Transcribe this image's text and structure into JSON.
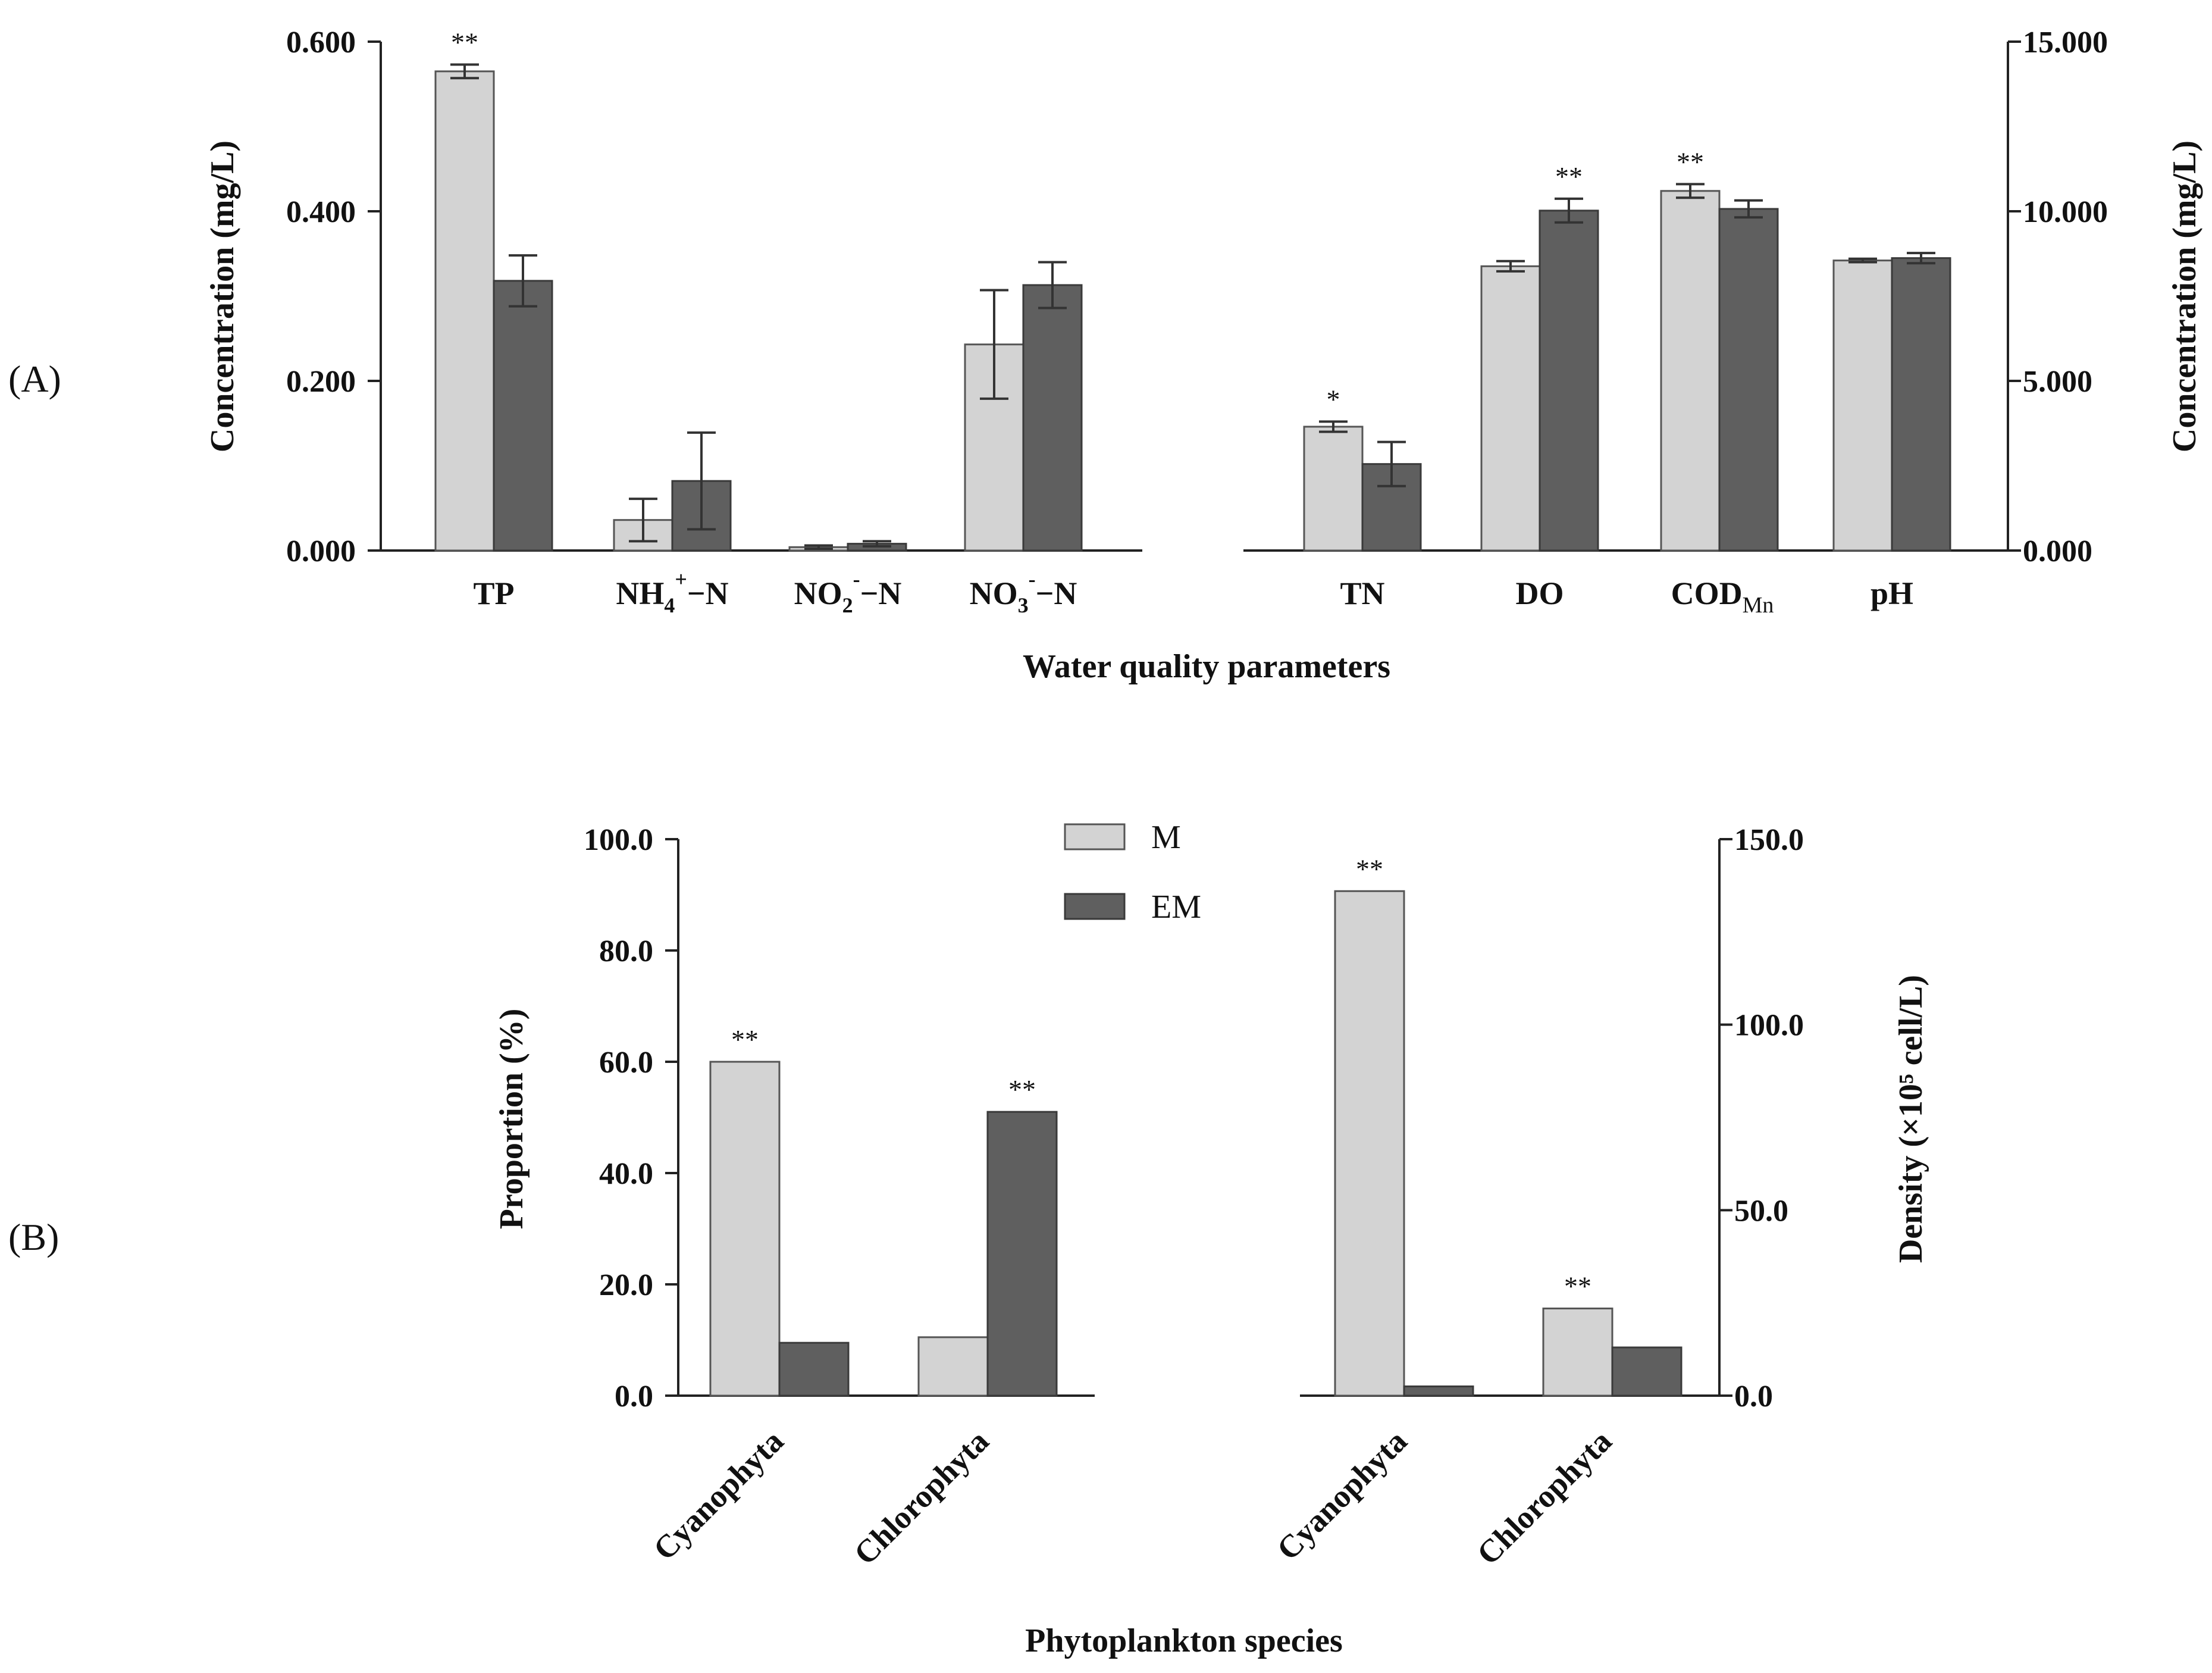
{
  "panel_labels": {
    "a": "(A)",
    "b": "(B)"
  },
  "legend": {
    "m": "M",
    "em": "EM"
  },
  "colors": {
    "m": "#d3d3d3",
    "em": "#5f5f5f",
    "axis": "#222222"
  },
  "chart_data": [
    {
      "type": "bar",
      "panel": "A-left",
      "ylabel": "Concentration (mg/L)",
      "xlabel": "Water quality parameters",
      "ylim": [
        0,
        0.6
      ],
      "yticks": [
        "0.000",
        "0.200",
        "0.400",
        "0.600"
      ],
      "categories": [
        "TP",
        "NH4+–N",
        "NO2−–N",
        "NO3−–N"
      ],
      "series": [
        {
          "name": "M",
          "values": [
            0.565,
            0.036,
            0.004,
            0.243
          ],
          "errors": [
            0.008,
            0.025,
            0.002,
            0.064
          ]
        },
        {
          "name": "EM",
          "values": [
            0.318,
            0.082,
            0.008,
            0.313
          ],
          "errors": [
            0.03,
            0.057,
            0.003,
            0.027
          ]
        }
      ],
      "annotations": [
        {
          "category": "TP",
          "series": "M",
          "text": "**"
        }
      ]
    },
    {
      "type": "bar",
      "panel": "A-right",
      "ylabel": "Concentration (mg/L)",
      "ylim": [
        0,
        15
      ],
      "yticks": [
        "0.000",
        "5.000",
        "10.000",
        "15.000"
      ],
      "categories": [
        "TN",
        "DO",
        "CODMn",
        "pH"
      ],
      "series": [
        {
          "name": "M",
          "values": [
            3.65,
            8.38,
            10.6,
            8.55
          ],
          "errors": [
            0.15,
            0.15,
            0.2,
            0.05
          ]
        },
        {
          "name": "EM",
          "values": [
            2.55,
            10.02,
            10.07,
            8.62
          ],
          "errors": [
            0.65,
            0.35,
            0.25,
            0.15
          ]
        }
      ],
      "annotations": [
        {
          "category": "TN",
          "series": "M",
          "text": "*"
        },
        {
          "category": "DO",
          "series": "EM",
          "text": "**"
        },
        {
          "category": "CODMn",
          "series": "M",
          "text": "**"
        }
      ]
    },
    {
      "type": "bar",
      "panel": "B-left",
      "ylabel": "Proportion (%)",
      "xlabel": "Phytoplankton species",
      "ylim": [
        0,
        100
      ],
      "yticks": [
        "0.0",
        "20.0",
        "40.0",
        "60.0",
        "80.0",
        "100.0"
      ],
      "categories": [
        "Cyanophyta",
        "Chlorophyta"
      ],
      "series": [
        {
          "name": "M",
          "values": [
            60.0,
            10.5
          ]
        },
        {
          "name": "EM",
          "values": [
            9.5,
            51.0
          ]
        }
      ],
      "annotations": [
        {
          "category": "Cyanophyta",
          "series": "M",
          "text": "**"
        },
        {
          "category": "Chlorophyta",
          "series": "EM",
          "text": "**"
        }
      ]
    },
    {
      "type": "bar",
      "panel": "B-right",
      "ylabel": "Density (×10⁵ cell/L)",
      "ylim": [
        0,
        150
      ],
      "yticks": [
        "0.0",
        "50.0",
        "100.0",
        "150.0"
      ],
      "categories": [
        "Cyanophyta",
        "Chlorophyta"
      ],
      "series": [
        {
          "name": "M",
          "values": [
            136.0,
            23.5
          ]
        },
        {
          "name": "EM",
          "values": [
            2.5,
            13.0
          ]
        }
      ],
      "annotations": [
        {
          "category": "Cyanophyta",
          "series": "M",
          "text": "**"
        },
        {
          "category": "Chlorophyta",
          "series": "M",
          "text": "**"
        }
      ]
    }
  ]
}
